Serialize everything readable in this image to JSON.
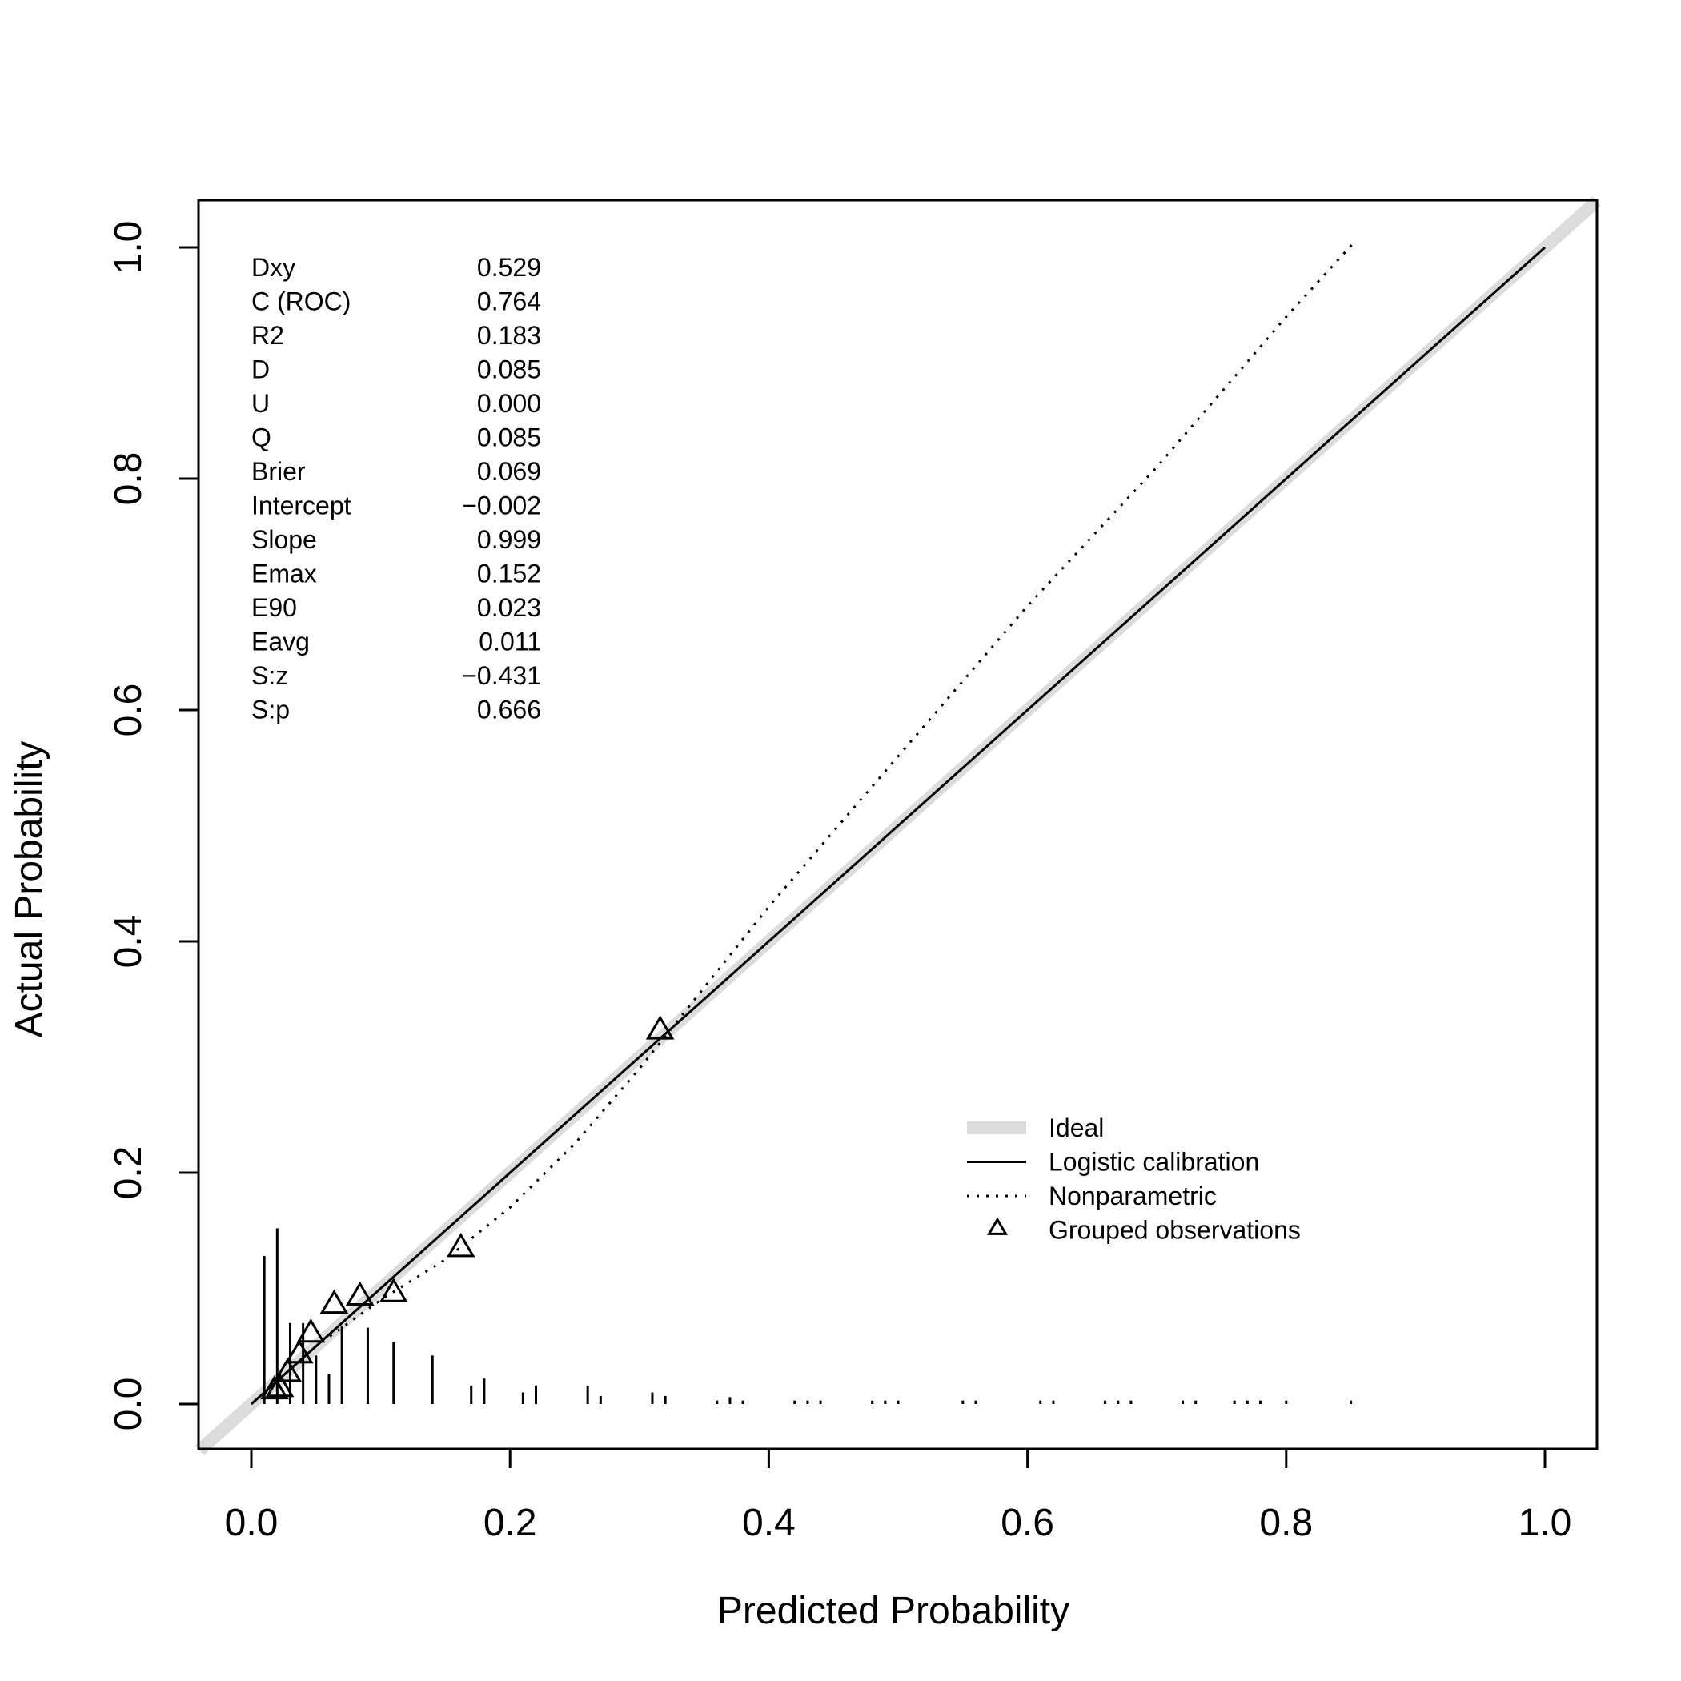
{
  "chart_data": {
    "type": "scatter",
    "title": "",
    "xlabel": "Predicted Probability",
    "ylabel": "Actual Probability",
    "xlim": [
      -0.04,
      1.04
    ],
    "ylim": [
      -0.04,
      1.04
    ],
    "xticks": [
      {
        "value": 0.0,
        "label": "0.0"
      },
      {
        "value": 0.2,
        "label": "0.2"
      },
      {
        "value": 0.4,
        "label": "0.4"
      },
      {
        "value": 0.6,
        "label": "0.6"
      },
      {
        "value": 0.8,
        "label": "0.8"
      },
      {
        "value": 1.0,
        "label": "1.0"
      }
    ],
    "yticks": [
      {
        "value": 0.0,
        "label": "0.0"
      },
      {
        "value": 0.2,
        "label": "0.2"
      },
      {
        "value": 0.4,
        "label": "0.4"
      },
      {
        "value": 0.6,
        "label": "0.6"
      },
      {
        "value": 0.8,
        "label": "0.8"
      },
      {
        "value": 1.0,
        "label": "1.0"
      }
    ],
    "stats": [
      {
        "name": "Dxy",
        "value": "0.529"
      },
      {
        "name": "C (ROC)",
        "value": "0.764"
      },
      {
        "name": "R2",
        "value": "0.183"
      },
      {
        "name": "D",
        "value": "0.085"
      },
      {
        "name": "U",
        "value": "0.000"
      },
      {
        "name": "Q",
        "value": "0.085"
      },
      {
        "name": "Brier",
        "value": "0.069"
      },
      {
        "name": "Intercept",
        "value": "−0.002"
      },
      {
        "name": "Slope",
        "value": "0.999"
      },
      {
        "name": "Emax",
        "value": "0.152"
      },
      {
        "name": "E90",
        "value": "0.023"
      },
      {
        "name": "Eavg",
        "value": "0.011"
      },
      {
        "name": "S:z",
        "value": "−0.431"
      },
      {
        "name": "S:p",
        "value": "0.666"
      }
    ],
    "legend": {
      "placement": "bottom-right",
      "items": [
        {
          "label": "Ideal",
          "style": "thick-grey-line"
        },
        {
          "label": "Logistic calibration",
          "style": "solid-line"
        },
        {
          "label": "Nonparametric",
          "style": "dotted-line"
        },
        {
          "label": "Grouped observations",
          "style": "triangle"
        }
      ]
    },
    "series": [
      {
        "name": "Ideal",
        "kind": "line",
        "color": "#dcdcdc",
        "x": [
          -0.04,
          1.04
        ],
        "y": [
          -0.04,
          1.04
        ]
      },
      {
        "name": "Logistic calibration",
        "kind": "line",
        "color": "#000000",
        "x": [
          0.0,
          0.1,
          0.2,
          0.3,
          0.4,
          0.5,
          0.6,
          0.7,
          0.8,
          0.9,
          1.0
        ],
        "y": [
          0.0,
          0.1,
          0.2,
          0.3,
          0.4,
          0.5,
          0.6,
          0.7,
          0.8,
          0.9,
          1.0
        ]
      },
      {
        "name": "Nonparametric",
        "kind": "dotted-line",
        "color": "#000000",
        "x": [
          0.01,
          0.05,
          0.1,
          0.15,
          0.2,
          0.25,
          0.3,
          0.35,
          0.4,
          0.5,
          0.6,
          0.7,
          0.8,
          0.853
        ],
        "y": [
          0.01,
          0.05,
          0.09,
          0.125,
          0.17,
          0.225,
          0.29,
          0.36,
          0.43,
          0.56,
          0.69,
          0.81,
          0.94,
          1.005
        ]
      },
      {
        "name": "Grouped observations",
        "kind": "triangles",
        "color": "#000000",
        "x": [
          0.018,
          0.022,
          0.028,
          0.037,
          0.046,
          0.064,
          0.084,
          0.11,
          0.162,
          0.316
        ],
        "y": [
          0.012,
          0.014,
          0.027,
          0.043,
          0.061,
          0.086,
          0.093,
          0.096,
          0.135,
          0.323
        ]
      }
    ],
    "spike_histogram": {
      "x": [
        0.01,
        0.02,
        0.03,
        0.04,
        0.05,
        0.06,
        0.07,
        0.09,
        0.11,
        0.14,
        0.17,
        0.18,
        0.21,
        0.22,
        0.26,
        0.27,
        0.31,
        0.32,
        0.36,
        0.37,
        0.38,
        0.42,
        0.43,
        0.44,
        0.48,
        0.49,
        0.5,
        0.55,
        0.56,
        0.61,
        0.62,
        0.66,
        0.67,
        0.68,
        0.72,
        0.73,
        0.76,
        0.77,
        0.78,
        0.8,
        0.85
      ],
      "heights": [
        0.128,
        0.152,
        0.07,
        0.07,
        0.042,
        0.026,
        0.067,
        0.066,
        0.054,
        0.042,
        0.016,
        0.022,
        0.01,
        0.016,
        0.016,
        0.007,
        0.01,
        0.007,
        0.003,
        0.006,
        0.003,
        0.003,
        0.003,
        0.003,
        0.003,
        0.003,
        0.003,
        0.003,
        0.003,
        0.003,
        0.003,
        0.003,
        0.003,
        0.003,
        0.003,
        0.003,
        0.003,
        0.003,
        0.003,
        0.003,
        0.003
      ]
    }
  }
}
